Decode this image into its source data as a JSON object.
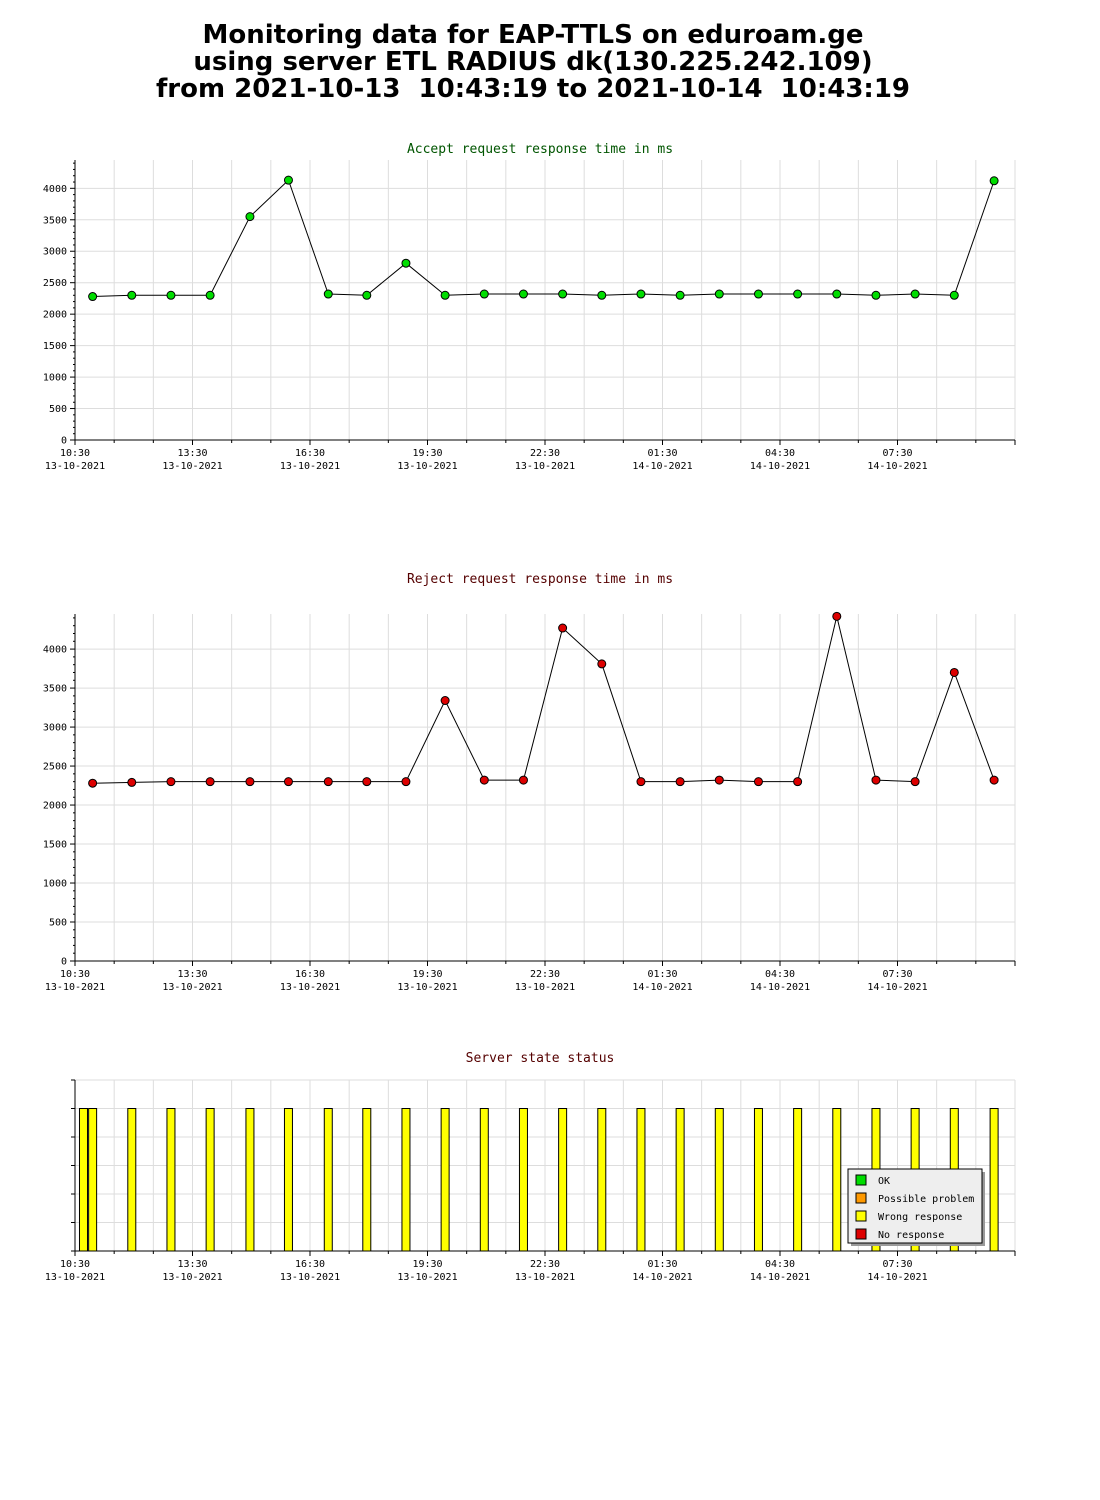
{
  "page": {
    "title_lines": [
      "Monitoring data for EAP-TTLS on eduroam.ge",
      "using server ETL RADIUS dk(130.225.242.109)",
      "from 2021-10-13  10:43:19 to 2021-10-14  10:43:19"
    ]
  },
  "colors": {
    "ok": "#00dd00",
    "possible_problem": "#ff9900",
    "wrong_response": "#ffff00",
    "no_response": "#dd0000",
    "accept_title": "#005500",
    "reject_title": "#550000"
  },
  "chart_data": [
    {
      "type": "line",
      "title": "Accept request response time in ms",
      "xlabel": "",
      "ylabel": "",
      "ylim": [
        0,
        4450
      ],
      "yticks": [
        0,
        500,
        1000,
        1500,
        2000,
        2500,
        3000,
        3500,
        4000
      ],
      "xlim_hours": [
        0,
        24
      ],
      "x_tick_labels": [
        {
          "time": "10:30",
          "date": "13-10-2021"
        },
        {
          "time": "13:30",
          "date": "13-10-2021"
        },
        {
          "time": "16:30",
          "date": "13-10-2021"
        },
        {
          "time": "19:30",
          "date": "13-10-2021"
        },
        {
          "time": "22:30",
          "date": "13-10-2021"
        },
        {
          "time": "01:30",
          "date": "14-10-2021"
        },
        {
          "time": "04:30",
          "date": "14-10-2021"
        },
        {
          "time": "07:30",
          "date": "14-10-2021"
        }
      ],
      "grid": true,
      "series": [
        {
          "color": "#00dd00",
          "x": [
            "10:57",
            "11:57",
            "12:57",
            "13:57",
            "14:58",
            "15:57",
            "16:58",
            "17:57",
            "18:57",
            "19:57",
            "20:57",
            "21:57",
            "22:57",
            "23:57",
            "00:57",
            "01:57",
            "02:57",
            "03:57",
            "04:57",
            "05:57",
            "06:57",
            "07:57",
            "08:57",
            "09:58"
          ],
          "values": [
            2280,
            2300,
            2300,
            2300,
            3550,
            4130,
            2320,
            2300,
            2810,
            2300,
            2320,
            2320,
            2320,
            2300,
            2320,
            2300,
            2320,
            2320,
            2320,
            2320,
            2300,
            2320,
            2300,
            4120
          ]
        }
      ]
    },
    {
      "type": "line",
      "title": "Reject request response time in ms",
      "xlabel": "",
      "ylabel": "",
      "ylim": [
        0,
        4450
      ],
      "yticks": [
        0,
        500,
        1000,
        1500,
        2000,
        2500,
        3000,
        3500,
        4000
      ],
      "xlim_hours": [
        0,
        24
      ],
      "x_tick_labels": [
        {
          "time": "10:30",
          "date": "13-10-2021"
        },
        {
          "time": "13:30",
          "date": "13-10-2021"
        },
        {
          "time": "16:30",
          "date": "13-10-2021"
        },
        {
          "time": "19:30",
          "date": "13-10-2021"
        },
        {
          "time": "22:30",
          "date": "13-10-2021"
        },
        {
          "time": "01:30",
          "date": "14-10-2021"
        },
        {
          "time": "04:30",
          "date": "14-10-2021"
        },
        {
          "time": "07:30",
          "date": "14-10-2021"
        }
      ],
      "grid": true,
      "series": [
        {
          "color": "#dd0000",
          "x": [
            "10:57",
            "11:57",
            "12:57",
            "13:57",
            "14:58",
            "15:57",
            "16:58",
            "17:57",
            "18:57",
            "19:57",
            "20:57",
            "21:57",
            "22:57",
            "23:57",
            "00:57",
            "01:57",
            "02:57",
            "03:57",
            "04:57",
            "05:57",
            "06:57",
            "07:57",
            "08:57",
            "09:58"
          ],
          "values": [
            2280,
            2290,
            2300,
            2300,
            2300,
            2300,
            2300,
            2300,
            2300,
            3340,
            2320,
            2320,
            4270,
            3810,
            2300,
            2300,
            2320,
            2300,
            2300,
            4420,
            2320,
            2300,
            3700,
            2320
          ]
        }
      ]
    },
    {
      "type": "bar",
      "title": "Server state status",
      "xlim_hours": [
        0,
        24
      ],
      "x_tick_labels": [
        {
          "time": "10:30",
          "date": "13-10-2021"
        },
        {
          "time": "13:30",
          "date": "13-10-2021"
        },
        {
          "time": "16:30",
          "date": "13-10-2021"
        },
        {
          "time": "19:30",
          "date": "13-10-2021"
        },
        {
          "time": "22:30",
          "date": "13-10-2021"
        },
        {
          "time": "01:30",
          "date": "14-10-2021"
        },
        {
          "time": "04:30",
          "date": "14-10-2021"
        },
        {
          "time": "07:30",
          "date": "14-10-2021"
        }
      ],
      "grid": true,
      "legend_position": "bottom-right",
      "legend": [
        {
          "label": "OK",
          "color": "#00dd00"
        },
        {
          "label": "Possible problem",
          "color": "#ff9900"
        },
        {
          "label": "Wrong response",
          "color": "#ffff00"
        },
        {
          "label": "No response",
          "color": "#dd0000"
        }
      ],
      "x": [
        "10:57",
        "11:57",
        "12:57",
        "13:57",
        "14:58",
        "15:57",
        "16:58",
        "17:57",
        "18:57",
        "19:57",
        "20:57",
        "21:57",
        "22:57",
        "23:57",
        "00:57",
        "01:57",
        "02:57",
        "03:57",
        "04:57",
        "05:57",
        "06:57",
        "07:57",
        "08:57",
        "09:58",
        "10:43"
      ],
      "states": [
        "Wrong response",
        "Wrong response",
        "Wrong response",
        "Wrong response",
        "Wrong response",
        "Wrong response",
        "Wrong response",
        "Wrong response",
        "Wrong response",
        "Wrong response",
        "Wrong response",
        "Wrong response",
        "Wrong response",
        "Wrong response",
        "Wrong response",
        "Wrong response",
        "Wrong response",
        "Wrong response",
        "Wrong response",
        "Wrong response",
        "Wrong response",
        "Wrong response",
        "Wrong response",
        "Wrong response",
        "Wrong response"
      ]
    }
  ]
}
